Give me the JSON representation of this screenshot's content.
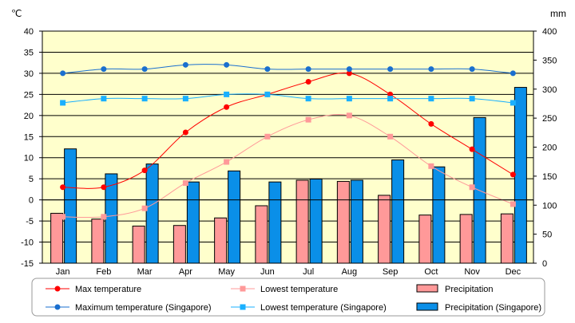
{
  "chart_data": {
    "type": "bar+line",
    "categories": [
      "Jan",
      "Feb",
      "Mar",
      "Apr",
      "May",
      "Jun",
      "Jul",
      "Aug",
      "Sep",
      "Oct",
      "Nov",
      "Dec"
    ],
    "left_axis": {
      "unit": "℃",
      "ylim": [
        -15,
        40
      ],
      "ticks": [
        40,
        35,
        30,
        25,
        20,
        15,
        10,
        5,
        0,
        -5,
        -10,
        -15
      ]
    },
    "right_axis": {
      "unit": "mm",
      "ylim": [
        0,
        400
      ],
      "ticks": [
        400,
        350,
        300,
        250,
        200,
        150,
        100,
        50,
        0
      ]
    },
    "grid": "horizontal",
    "legend_position": "bottom",
    "series": [
      {
        "name": "Max temperature",
        "kind": "line",
        "axis": "left",
        "color": "#ff0000",
        "marker": "circle",
        "values": [
          3,
          3,
          7,
          16,
          22,
          25,
          28,
          30,
          25,
          18,
          12,
          6
        ]
      },
      {
        "name": "Lowest temperature",
        "kind": "line",
        "axis": "left",
        "color": "#ff9999",
        "marker": "square",
        "values": [
          -4,
          -4,
          -2,
          4,
          9,
          15,
          19,
          20,
          15,
          8,
          3,
          -1
        ]
      },
      {
        "name": "Precipitation",
        "kind": "bar",
        "axis": "right",
        "color": "#ff9999",
        "values": [
          86,
          76,
          64,
          65,
          78,
          99,
          143,
          141,
          117,
          83,
          84,
          85
        ]
      },
      {
        "name": "Maximum temperature (Singapore)",
        "kind": "line",
        "axis": "left",
        "color": "#1a6fcf",
        "marker": "circle",
        "values": [
          30,
          31,
          31,
          32,
          32,
          31,
          31,
          31,
          31,
          31,
          31,
          30
        ]
      },
      {
        "name": "Lowest temperature (Singapore)",
        "kind": "line",
        "axis": "left",
        "color": "#1ab0ff",
        "marker": "square",
        "values": [
          23,
          24,
          24,
          24,
          25,
          25,
          24,
          24,
          24,
          24,
          24,
          23
        ]
      },
      {
        "name": "Precipitation (Singapore)",
        "kind": "bar",
        "axis": "right",
        "color": "#0a8fe8",
        "values": [
          197,
          154,
          171,
          140,
          159,
          140,
          145,
          143,
          178,
          166,
          251,
          303
        ]
      }
    ],
    "plot_background": "#ffffcc"
  }
}
